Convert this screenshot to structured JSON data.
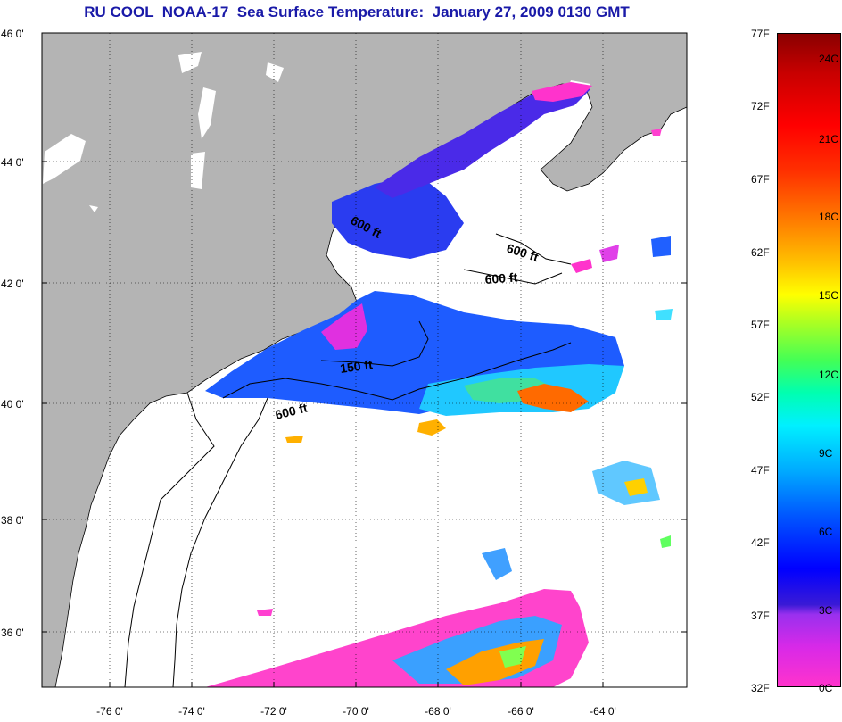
{
  "header": {
    "title": "RU COOL  NOAA-17  Sea Surface Temperature:  January 27, 2009 0130 GMT"
  },
  "map": {
    "lat_ticks": [
      "46 0'",
      "44 0'",
      "42 0'",
      "40 0'",
      "38 0'",
      "36 0'"
    ],
    "lon_ticks": [
      "-76 0'",
      "-74 0'",
      "-72 0'",
      "-70 0'",
      "-68 0'",
      "-66 0'",
      "-64 0'"
    ],
    "contour_labels": [
      "600 ft",
      "600 ft",
      "600 ft",
      "150 ft",
      "600 ft"
    ],
    "colors": {
      "land": "#b4b4b4",
      "ocean_no_data": "#ffffff"
    }
  },
  "colorbar": {
    "fahrenheit": [
      "77F",
      "72F",
      "67F",
      "62F",
      "57F",
      "52F",
      "47F",
      "42F",
      "37F",
      "32F"
    ],
    "celsius": [
      "24C",
      "21C",
      "18C",
      "15C",
      "12C",
      "9C",
      "6C",
      "3C",
      "0C"
    ]
  }
}
